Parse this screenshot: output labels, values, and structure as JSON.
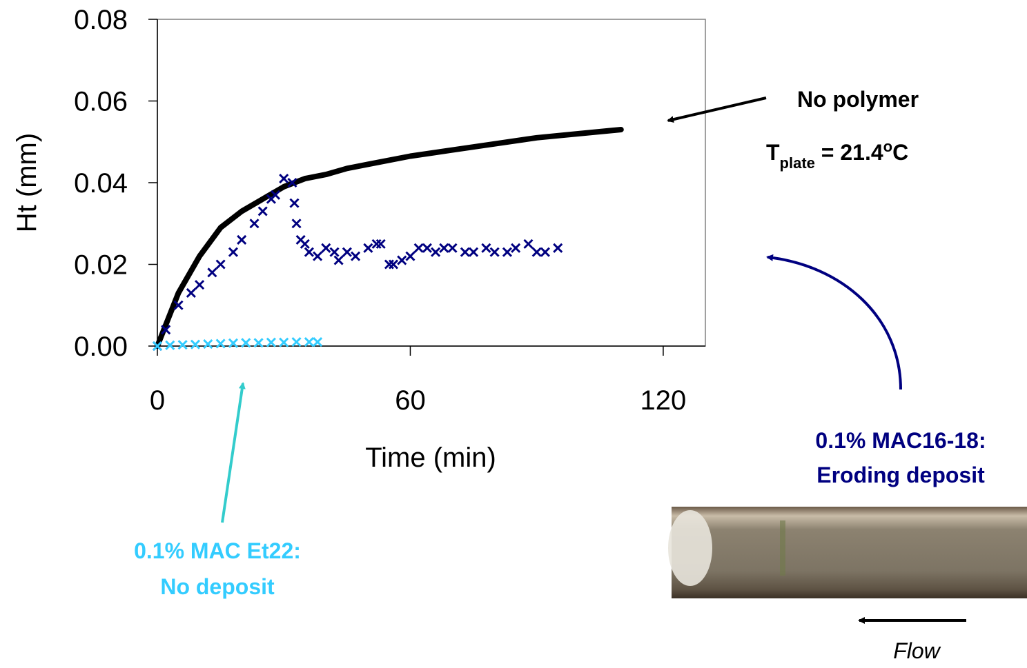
{
  "chart_data": {
    "type": "scatter",
    "xlabel": "Time (min)",
    "ylabel": "Ht (mm)",
    "xlim": [
      0,
      130
    ],
    "xticks": [
      0,
      60,
      120
    ],
    "ylim": [
      0,
      0.08
    ],
    "yticks": [
      {
        "value": 0,
        "label": "0.00"
      },
      {
        "value": 0.02,
        "label": "0.02"
      },
      {
        "value": 0.04,
        "label": "0.04"
      },
      {
        "value": 0.06,
        "label": "0.06"
      },
      {
        "value": 0.08,
        "label": "0.08"
      }
    ],
    "series": [
      {
        "name": "No polymer",
        "color": "#000000",
        "marker": "line",
        "x": [
          0,
          5,
          10,
          15,
          20,
          25,
          30,
          35,
          40,
          45,
          50,
          60,
          70,
          80,
          90,
          100,
          110
        ],
        "values": [
          0,
          0.013,
          0.022,
          0.029,
          0.033,
          0.036,
          0.039,
          0.041,
          0.042,
          0.0435,
          0.0445,
          0.0465,
          0.048,
          0.0495,
          0.051,
          0.052,
          0.053
        ]
      },
      {
        "name": "0.1% MAC16-18:",
        "color": "#000080",
        "marker": "x",
        "x": [
          0,
          2,
          5,
          8,
          10,
          13,
          15,
          18,
          20,
          23,
          25,
          27,
          28,
          30,
          32,
          32.5,
          33,
          34,
          35,
          36,
          38,
          40,
          42,
          43,
          45,
          47,
          50,
          52,
          53,
          55,
          56,
          58,
          60,
          62,
          64,
          66,
          68,
          70,
          73,
          75,
          78,
          80,
          83,
          85,
          88,
          90,
          92,
          95
        ],
        "values": [
          0,
          0.004,
          0.01,
          0.013,
          0.015,
          0.018,
          0.02,
          0.023,
          0.026,
          0.03,
          0.033,
          0.036,
          0.037,
          0.041,
          0.04,
          0.035,
          0.03,
          0.026,
          0.025,
          0.023,
          0.022,
          0.024,
          0.023,
          0.021,
          0.023,
          0.022,
          0.024,
          0.025,
          0.025,
          0.02,
          0.02,
          0.021,
          0.022,
          0.024,
          0.024,
          0.023,
          0.024,
          0.024,
          0.023,
          0.023,
          0.024,
          0.023,
          0.023,
          0.024,
          0.025,
          0.023,
          0.023,
          0.024
        ]
      },
      {
        "name": "0.1% MAC Et22:",
        "color": "#33ccff",
        "marker": "x",
        "x": [
          0,
          3,
          6,
          9,
          12,
          15,
          18,
          21,
          24,
          27,
          30,
          33,
          36,
          38
        ],
        "values": [
          0,
          0.0002,
          0.0003,
          0.0004,
          0.0005,
          0.0006,
          0.0007,
          0.0008,
          0.0008,
          0.0009,
          0.0009,
          0.001,
          0.001,
          0.001
        ]
      }
    ],
    "annotations": [
      "Eroding deposit",
      "No deposit"
    ],
    "plate_label": {
      "main": "T",
      "sub": "plate",
      "mid": " = 21.4",
      "sup": "o",
      "end": "C"
    },
    "flow_label": "Flow"
  }
}
